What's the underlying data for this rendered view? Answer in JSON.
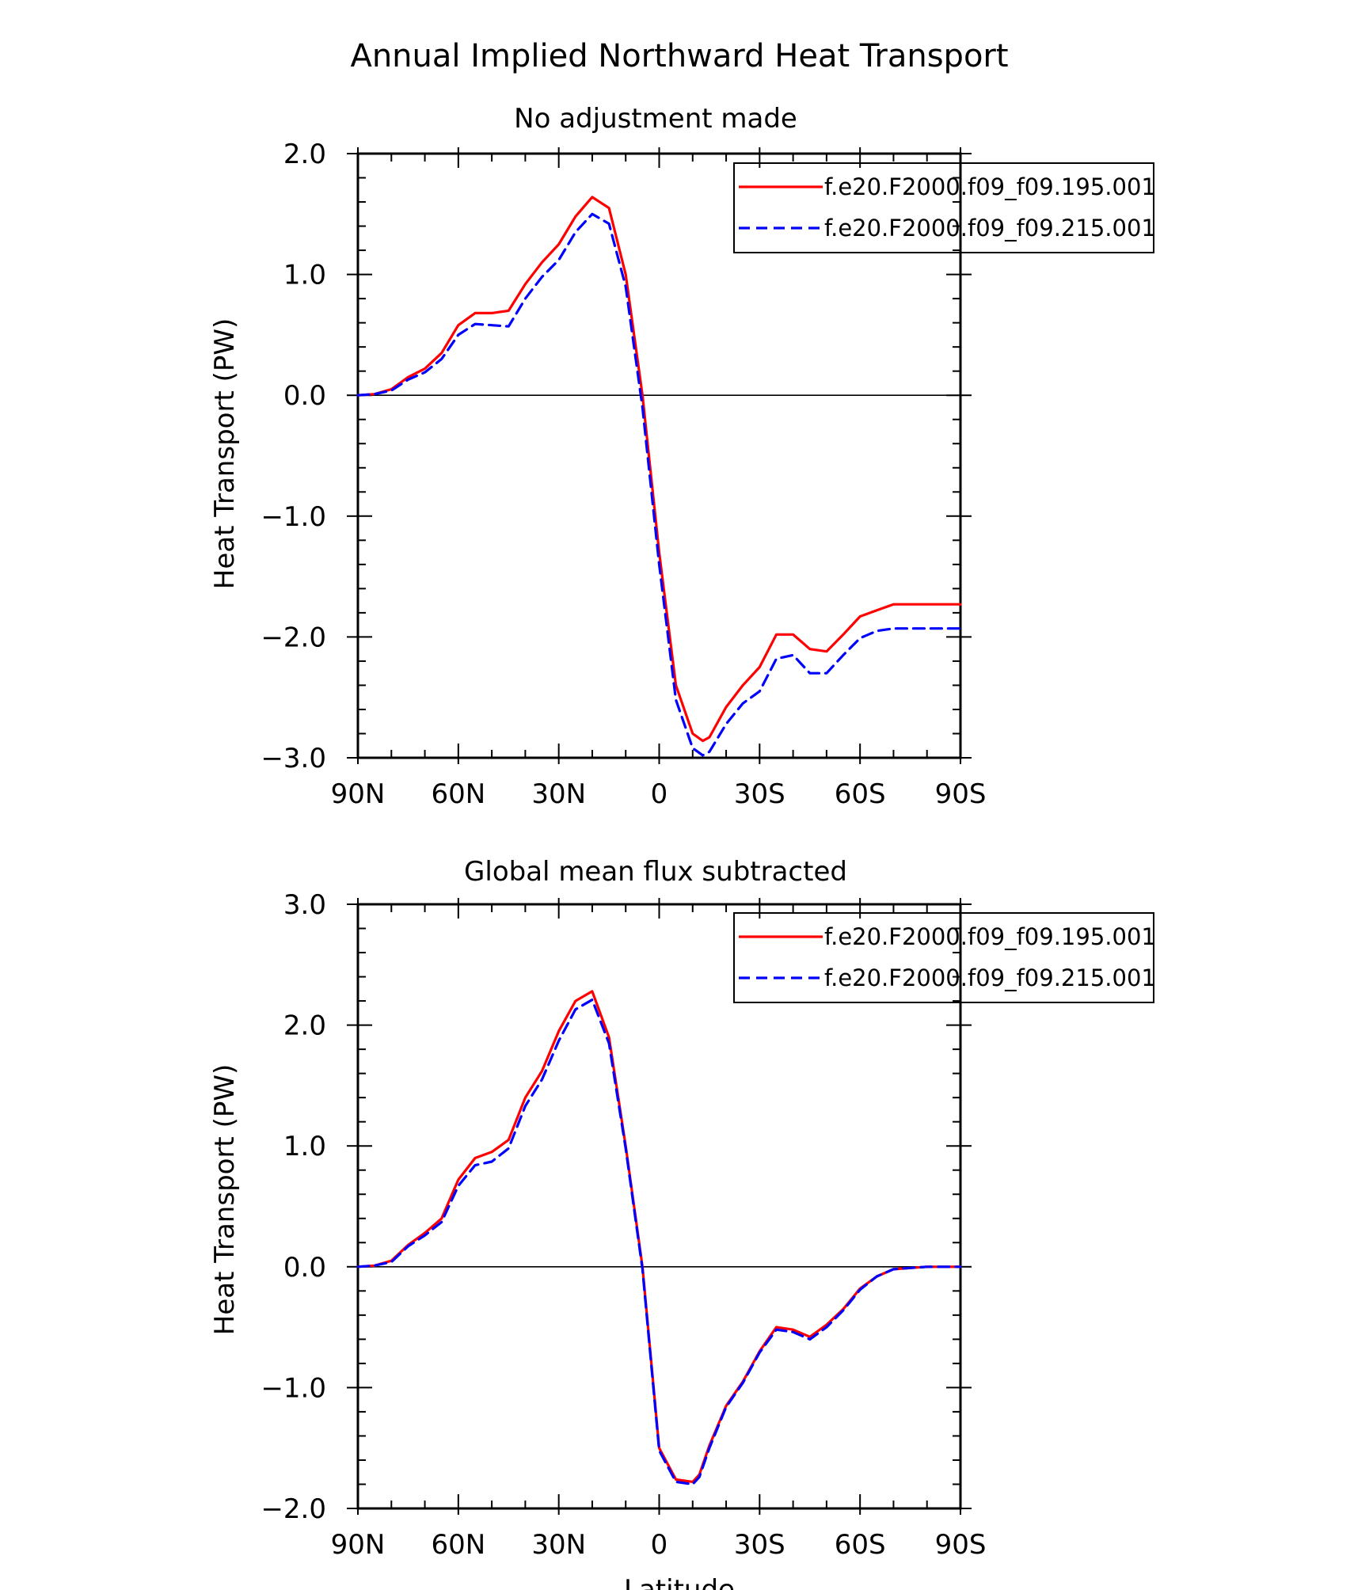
{
  "figure": {
    "title": "Annual Implied Northward Heat Transport",
    "xlabel": "Latitude"
  },
  "colors": {
    "series1": "#ff0000",
    "series2": "#0000ff",
    "axis": "#000000"
  },
  "chart_data": [
    {
      "type": "line",
      "title": "No adjustment made",
      "xlabel": "Latitude",
      "ylabel": "Heat Transport (PW)",
      "xlim": [
        90,
        -90
      ],
      "ylim": [
        -3.0,
        2.0
      ],
      "xticks": [
        90,
        60,
        30,
        0,
        -30,
        -60,
        -90
      ],
      "xtick_labels": [
        "90N",
        "60N",
        "30N",
        "0",
        "30S",
        "60S",
        "90S"
      ],
      "yticks": [
        2.0,
        1.0,
        0.0,
        -1.0,
        -2.0,
        -3.0
      ],
      "ytick_labels": [
        "2.0",
        "1.0",
        "0.0",
        "−1.0",
        "−2.0",
        "−3.0"
      ],
      "zero_line": true,
      "legend_position": "top-right",
      "series": [
        {
          "name": "f.e20.F2000.f09_f09.195.001",
          "style": "solid",
          "x": [
            90,
            85,
            80,
            75,
            70,
            65,
            60,
            55,
            50,
            45,
            40,
            35,
            30,
            25,
            20,
            15,
            10,
            5,
            0,
            -5,
            -10,
            -13,
            -15,
            -20,
            -25,
            -30,
            -35,
            -40,
            -45,
            -50,
            -55,
            -60,
            -65,
            -70,
            -75,
            -80,
            -85,
            -90
          ],
          "y": [
            0.0,
            0.01,
            0.05,
            0.15,
            0.22,
            0.35,
            0.58,
            0.68,
            0.68,
            0.7,
            0.92,
            1.1,
            1.25,
            1.48,
            1.64,
            1.55,
            1.0,
            0.0,
            -1.3,
            -2.4,
            -2.8,
            -2.86,
            -2.83,
            -2.58,
            -2.4,
            -2.25,
            -1.98,
            -1.98,
            -2.1,
            -2.12,
            -1.98,
            -1.83,
            -1.78,
            -1.73,
            -1.73,
            -1.73,
            -1.73,
            -1.73
          ]
        },
        {
          "name": "f.e20.F2000.f09_f09.215.001",
          "style": "dashed",
          "x": [
            90,
            85,
            80,
            75,
            70,
            65,
            60,
            55,
            50,
            45,
            40,
            35,
            30,
            25,
            20,
            15,
            10,
            5,
            0,
            -5,
            -10,
            -13,
            -15,
            -20,
            -25,
            -30,
            -35,
            -40,
            -45,
            -50,
            -55,
            -60,
            -65,
            -70,
            -75,
            -80,
            -85,
            -90
          ],
          "y": [
            0.0,
            0.01,
            0.04,
            0.13,
            0.19,
            0.3,
            0.5,
            0.59,
            0.58,
            0.57,
            0.8,
            0.98,
            1.12,
            1.35,
            1.5,
            1.42,
            0.9,
            -0.1,
            -1.4,
            -2.52,
            -2.92,
            -2.98,
            -2.95,
            -2.72,
            -2.55,
            -2.45,
            -2.18,
            -2.15,
            -2.3,
            -2.3,
            -2.15,
            -2.01,
            -1.95,
            -1.93,
            -1.93,
            -1.93,
            -1.93,
            -1.93
          ]
        }
      ]
    },
    {
      "type": "line",
      "title": "Global mean flux subtracted",
      "xlabel": "Latitude",
      "ylabel": "Heat Transport (PW)",
      "xlim": [
        90,
        -90
      ],
      "ylim": [
        -2.0,
        3.0
      ],
      "xticks": [
        90,
        60,
        30,
        0,
        -30,
        -60,
        -90
      ],
      "xtick_labels": [
        "90N",
        "60N",
        "30N",
        "0",
        "30S",
        "60S",
        "90S"
      ],
      "yticks": [
        3.0,
        2.0,
        1.0,
        0.0,
        -1.0,
        -2.0
      ],
      "ytick_labels": [
        "3.0",
        "2.0",
        "1.0",
        "0.0",
        "−1.0",
        "−2.0"
      ],
      "zero_line": true,
      "legend_position": "top-right",
      "series": [
        {
          "name": "f.e20.F2000.f09_f09.195.001",
          "style": "solid",
          "x": [
            90,
            85,
            80,
            75,
            70,
            65,
            60,
            55,
            50,
            45,
            40,
            35,
            30,
            25,
            20,
            15,
            10,
            5,
            0,
            -5,
            -10,
            -12,
            -15,
            -20,
            -25,
            -30,
            -35,
            -40,
            -45,
            -50,
            -55,
            -60,
            -65,
            -70,
            -75,
            -80,
            -85,
            -90
          ],
          "y": [
            0.0,
            0.01,
            0.05,
            0.18,
            0.28,
            0.4,
            0.72,
            0.9,
            0.95,
            1.05,
            1.4,
            1.62,
            1.95,
            2.2,
            2.28,
            1.9,
            1.0,
            0.0,
            -1.5,
            -1.76,
            -1.78,
            -1.72,
            -1.48,
            -1.15,
            -0.95,
            -0.7,
            -0.5,
            -0.52,
            -0.58,
            -0.48,
            -0.35,
            -0.18,
            -0.08,
            -0.02,
            -0.01,
            0.0,
            0.0,
            0.0
          ]
        },
        {
          "name": "f.e20.F2000.f09_f09.215.001",
          "style": "dashed",
          "x": [
            90,
            85,
            80,
            75,
            70,
            65,
            60,
            55,
            50,
            45,
            40,
            35,
            30,
            25,
            20,
            15,
            10,
            5,
            0,
            -5,
            -10,
            -12,
            -15,
            -20,
            -25,
            -30,
            -35,
            -40,
            -45,
            -50,
            -55,
            -60,
            -65,
            -70,
            -75,
            -80,
            -85,
            -90
          ],
          "y": [
            0.0,
            0.01,
            0.04,
            0.17,
            0.26,
            0.37,
            0.67,
            0.84,
            0.87,
            0.98,
            1.33,
            1.55,
            1.87,
            2.13,
            2.21,
            1.85,
            0.98,
            -0.02,
            -1.52,
            -1.78,
            -1.8,
            -1.74,
            -1.5,
            -1.16,
            -0.96,
            -0.71,
            -0.52,
            -0.54,
            -0.6,
            -0.5,
            -0.36,
            -0.19,
            -0.08,
            -0.02,
            -0.01,
            0.0,
            0.0,
            0.0
          ]
        }
      ]
    }
  ]
}
